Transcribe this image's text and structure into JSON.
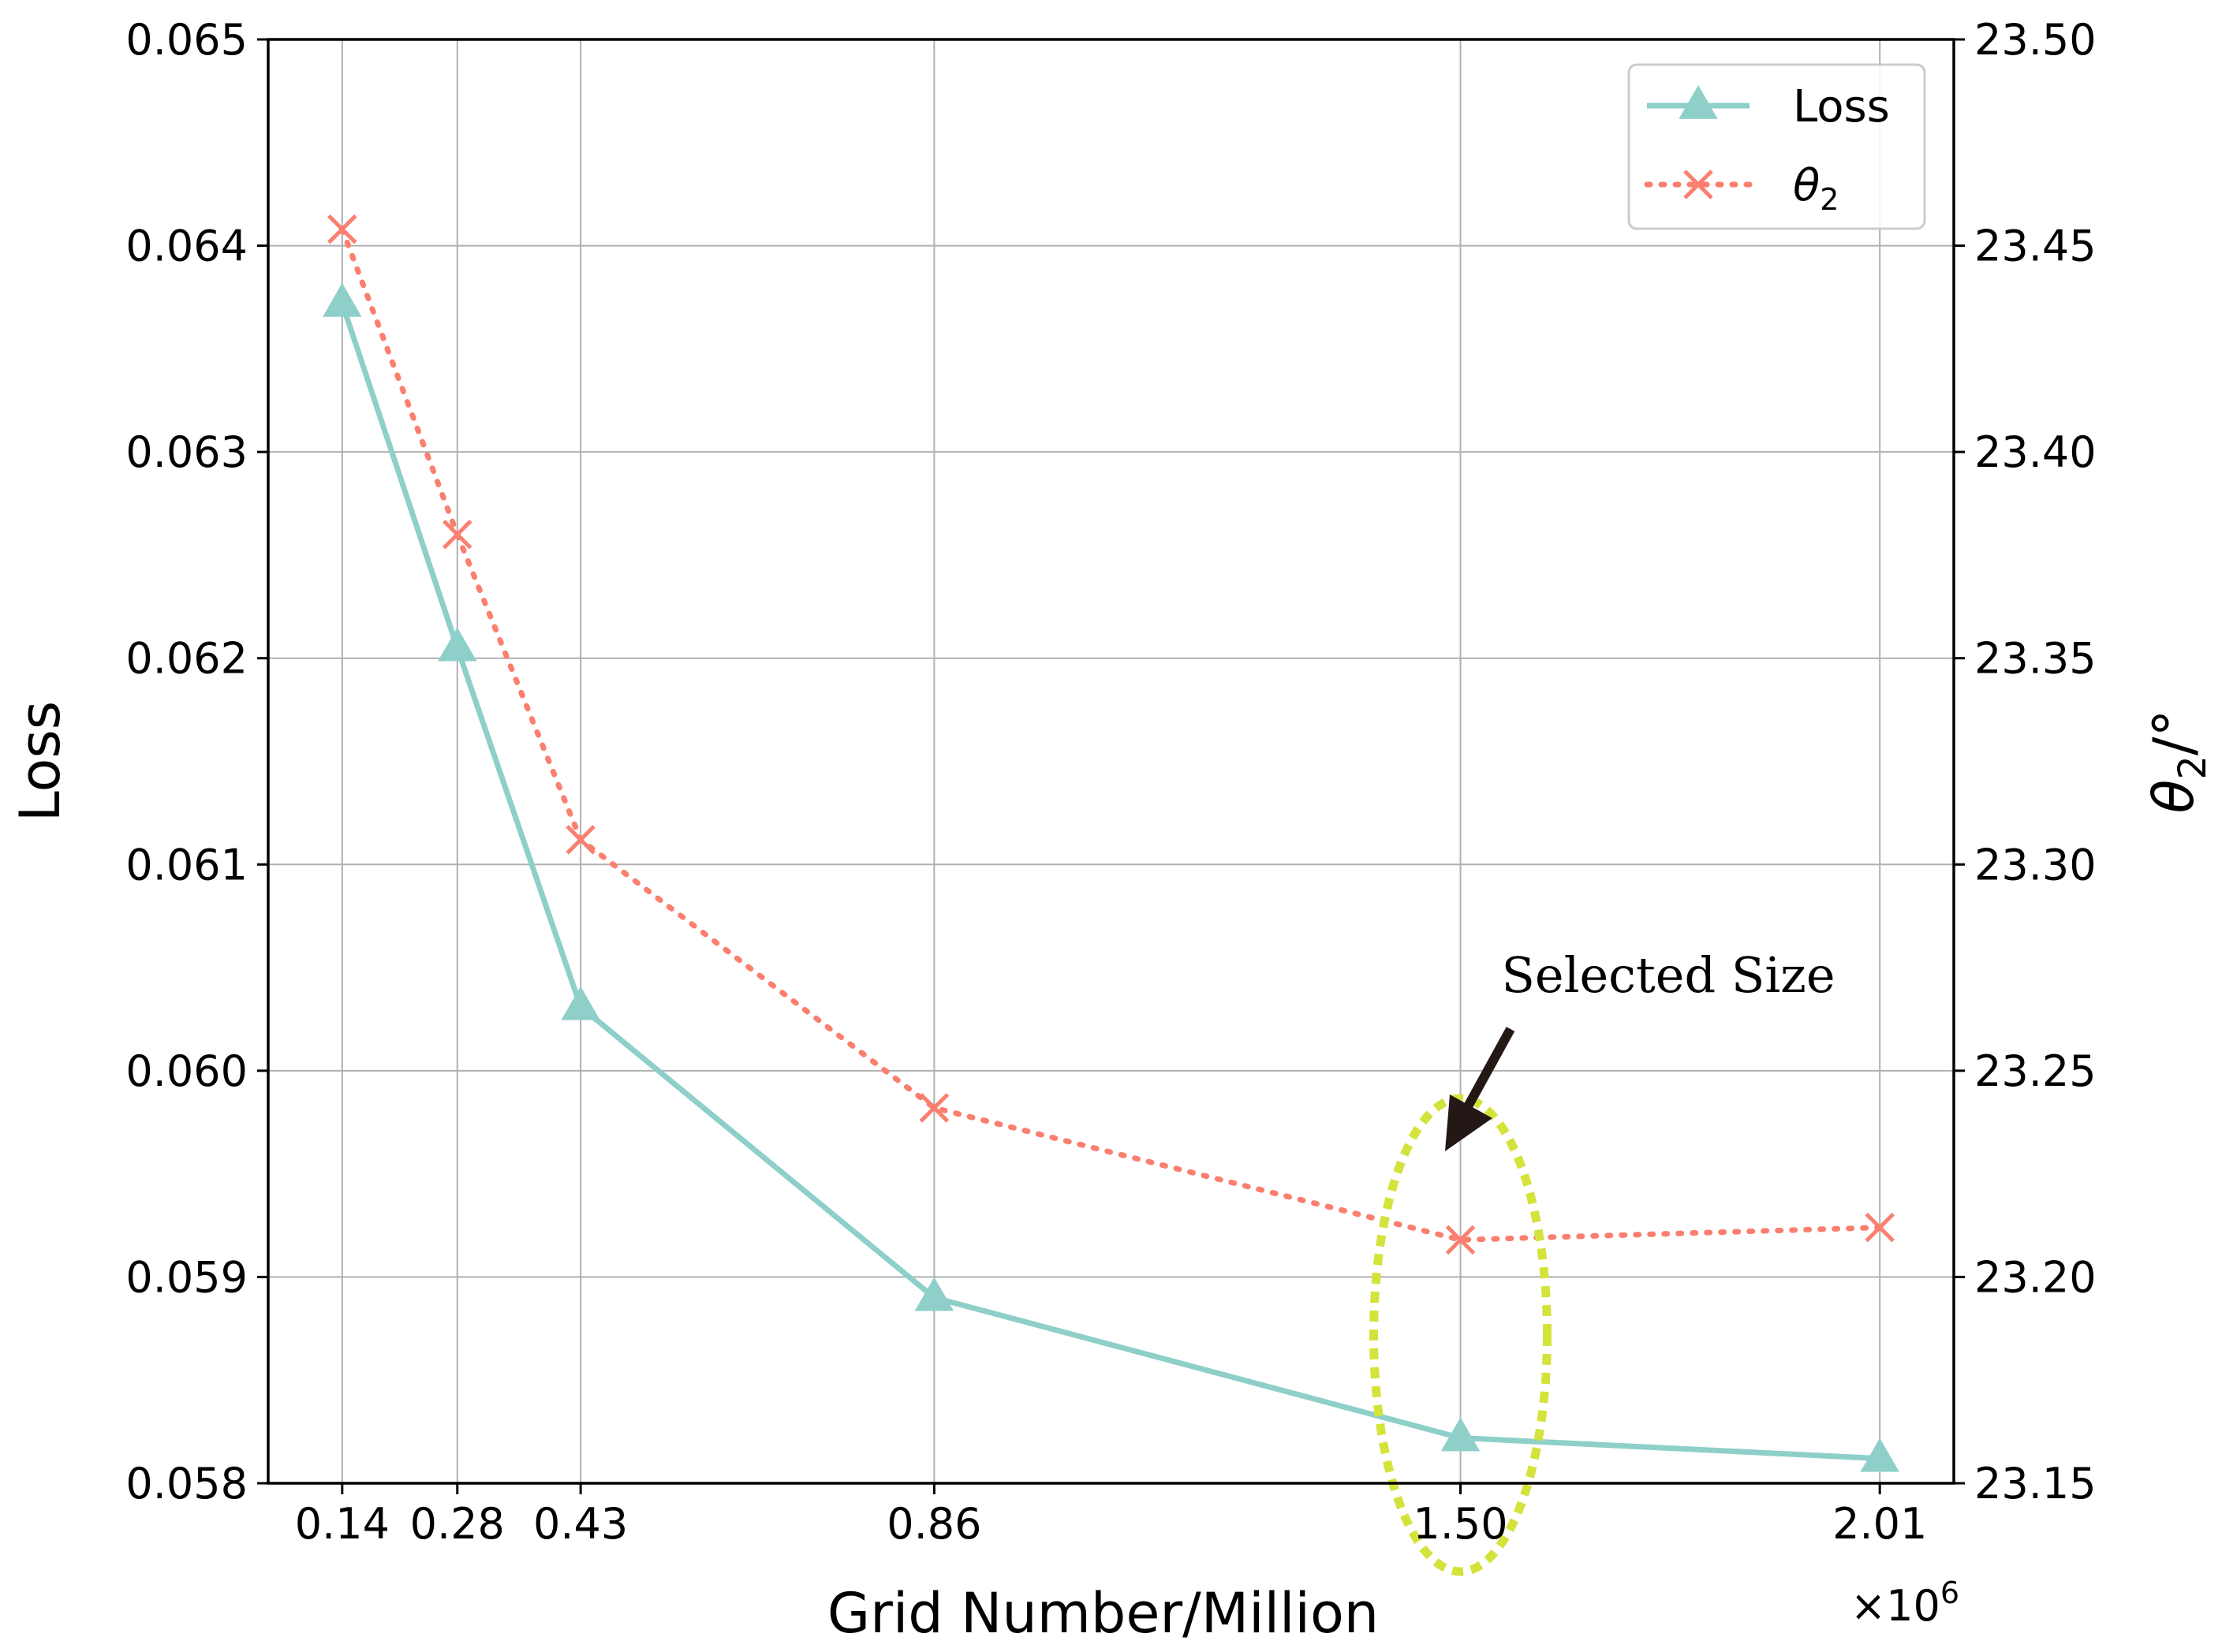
{
  "chart_data": {
    "type": "line",
    "title": "",
    "xlabel": "Grid Number/Million",
    "x_multiplier_label": "×10",
    "x_multiplier_exponent": "6",
    "ylabel_left": "Loss",
    "ylabel_right_symbol": "θ",
    "ylabel_right_subscript": "2",
    "ylabel_right_suffix": "/°",
    "x_values": [
      140000,
      280000,
      430000,
      860000,
      1500000,
      2010000
    ],
    "x_tick_labels": [
      "0.14",
      "0.28",
      "0.43",
      "0.86",
      "1.50",
      "2.01"
    ],
    "xlim": [
      50000,
      2100000
    ],
    "ylim_left": [
      0.058,
      0.065
    ],
    "y_left_ticks": [
      0.058,
      0.059,
      0.06,
      0.061,
      0.062,
      0.063,
      0.064,
      0.065
    ],
    "y_left_tick_labels": [
      "0.058",
      "0.059",
      "0.060",
      "0.061",
      "0.062",
      "0.063",
      "0.064",
      "0.065"
    ],
    "ylim_right": [
      23.15,
      23.5
    ],
    "y_right_ticks": [
      23.15,
      23.2,
      23.25,
      23.3,
      23.35,
      23.4,
      23.45,
      23.5
    ],
    "y_right_tick_labels": [
      "23.15",
      "23.20",
      "23.25",
      "23.30",
      "23.35",
      "23.40",
      "23.45",
      "23.50"
    ],
    "grid": true,
    "legend_position": "top-right",
    "series": [
      {
        "name": "Loss",
        "axis": "left",
        "marker": "triangle",
        "line_style": "solid",
        "color": "#8ecfc9",
        "values": [
          0.06372,
          0.06205,
          0.06031,
          0.0589,
          0.05822,
          0.05812
        ]
      },
      {
        "name": "θ",
        "name_subscript": "2",
        "axis": "right",
        "marker": "x",
        "line_style": "dotted",
        "color": "#fa7f6f",
        "values": [
          23.454,
          23.38,
          23.306,
          23.241,
          23.209,
          23.212
        ]
      }
    ],
    "annotation": {
      "text": "Selected Size",
      "target_x": 1500000,
      "highlight_color": "#d4e33b",
      "arrow_color": "#231815"
    }
  }
}
